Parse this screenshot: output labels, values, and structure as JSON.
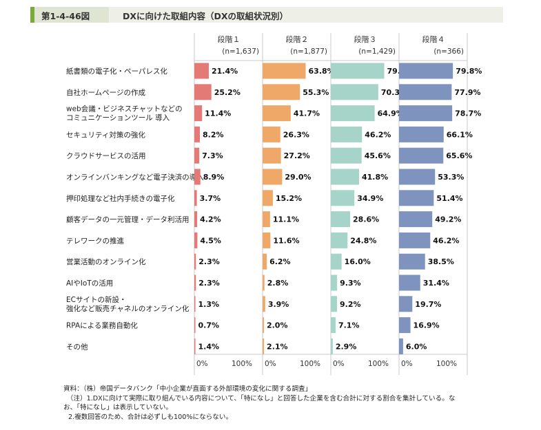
{
  "header": {
    "figure_number": "第1-4-46図",
    "title": "DXに向けた取組内容（DXの取組状況別）"
  },
  "chart_data": {
    "type": "bar",
    "orientation": "horizontal",
    "categories": [
      [
        "紙書類の電子化・ペーパレス化"
      ],
      [
        "自社ホームページの作成"
      ],
      [
        "web会議・ビジネスチャットなどの",
        "コミュニケーションツール 導入"
      ],
      [
        "セキュリティ対策の強化"
      ],
      [
        "クラウドサービスの活用"
      ],
      [
        "オンラインバンキングなど電子決済の導入"
      ],
      [
        "押印処理など社内手続きの電子化"
      ],
      [
        "顧客データの一元管理・データ利活用"
      ],
      [
        "テレワークの推進"
      ],
      [
        "営業活動のオンライン化"
      ],
      [
        "AIやIoTの活用"
      ],
      [
        "ECサイトの新設・",
        "強化など販売チャネルのオンライン化"
      ],
      [
        "RPAによる業務自動化"
      ],
      [
        "その他"
      ]
    ],
    "series": [
      {
        "name": "段階１",
        "n": "(n=1,637)",
        "color": "#e47a76",
        "values": [
          21.4,
          25.2,
          11.4,
          8.2,
          7.3,
          8.9,
          3.7,
          4.2,
          4.5,
          2.3,
          2.3,
          1.3,
          0.7,
          1.4
        ]
      },
      {
        "name": "段階２",
        "n": "(n=1,877)",
        "color": "#f0a868",
        "values": [
          63.8,
          55.3,
          41.7,
          26.3,
          27.2,
          29.0,
          15.2,
          11.1,
          11.6,
          6.2,
          2.8,
          3.9,
          2.0,
          2.1
        ]
      },
      {
        "name": "段階３",
        "n": "(n=1,429)",
        "color": "#a6d4c8",
        "values": [
          79.1,
          70.3,
          64.9,
          46.2,
          45.6,
          41.8,
          34.9,
          28.6,
          24.8,
          16.0,
          9.3,
          9.2,
          7.1,
          2.9
        ]
      },
      {
        "name": "段階４",
        "n": "(n=366)",
        "color": "#7e93bd",
        "values": [
          79.8,
          77.9,
          78.7,
          66.1,
          65.6,
          53.3,
          51.4,
          49.2,
          46.2,
          38.5,
          31.4,
          19.7,
          16.9,
          6.0
        ]
      }
    ],
    "xlim": [
      0,
      100
    ],
    "xtick_labels": [
      "0%",
      "100%"
    ],
    "value_suffix": "%"
  },
  "notes": [
    "資料：（株）帝国データバンク「中小企業が直面する外部環境の変化に関する調査」",
    "　（注）1.DXに向けて実際に取り組んでいる内容について、「特になし」と回答した企業を含む合計に対する割合を集計している。な",
    "お、「特になし」は表示していない。",
    "2.複数回答のため、合計は必ずしも100%にならない。"
  ]
}
